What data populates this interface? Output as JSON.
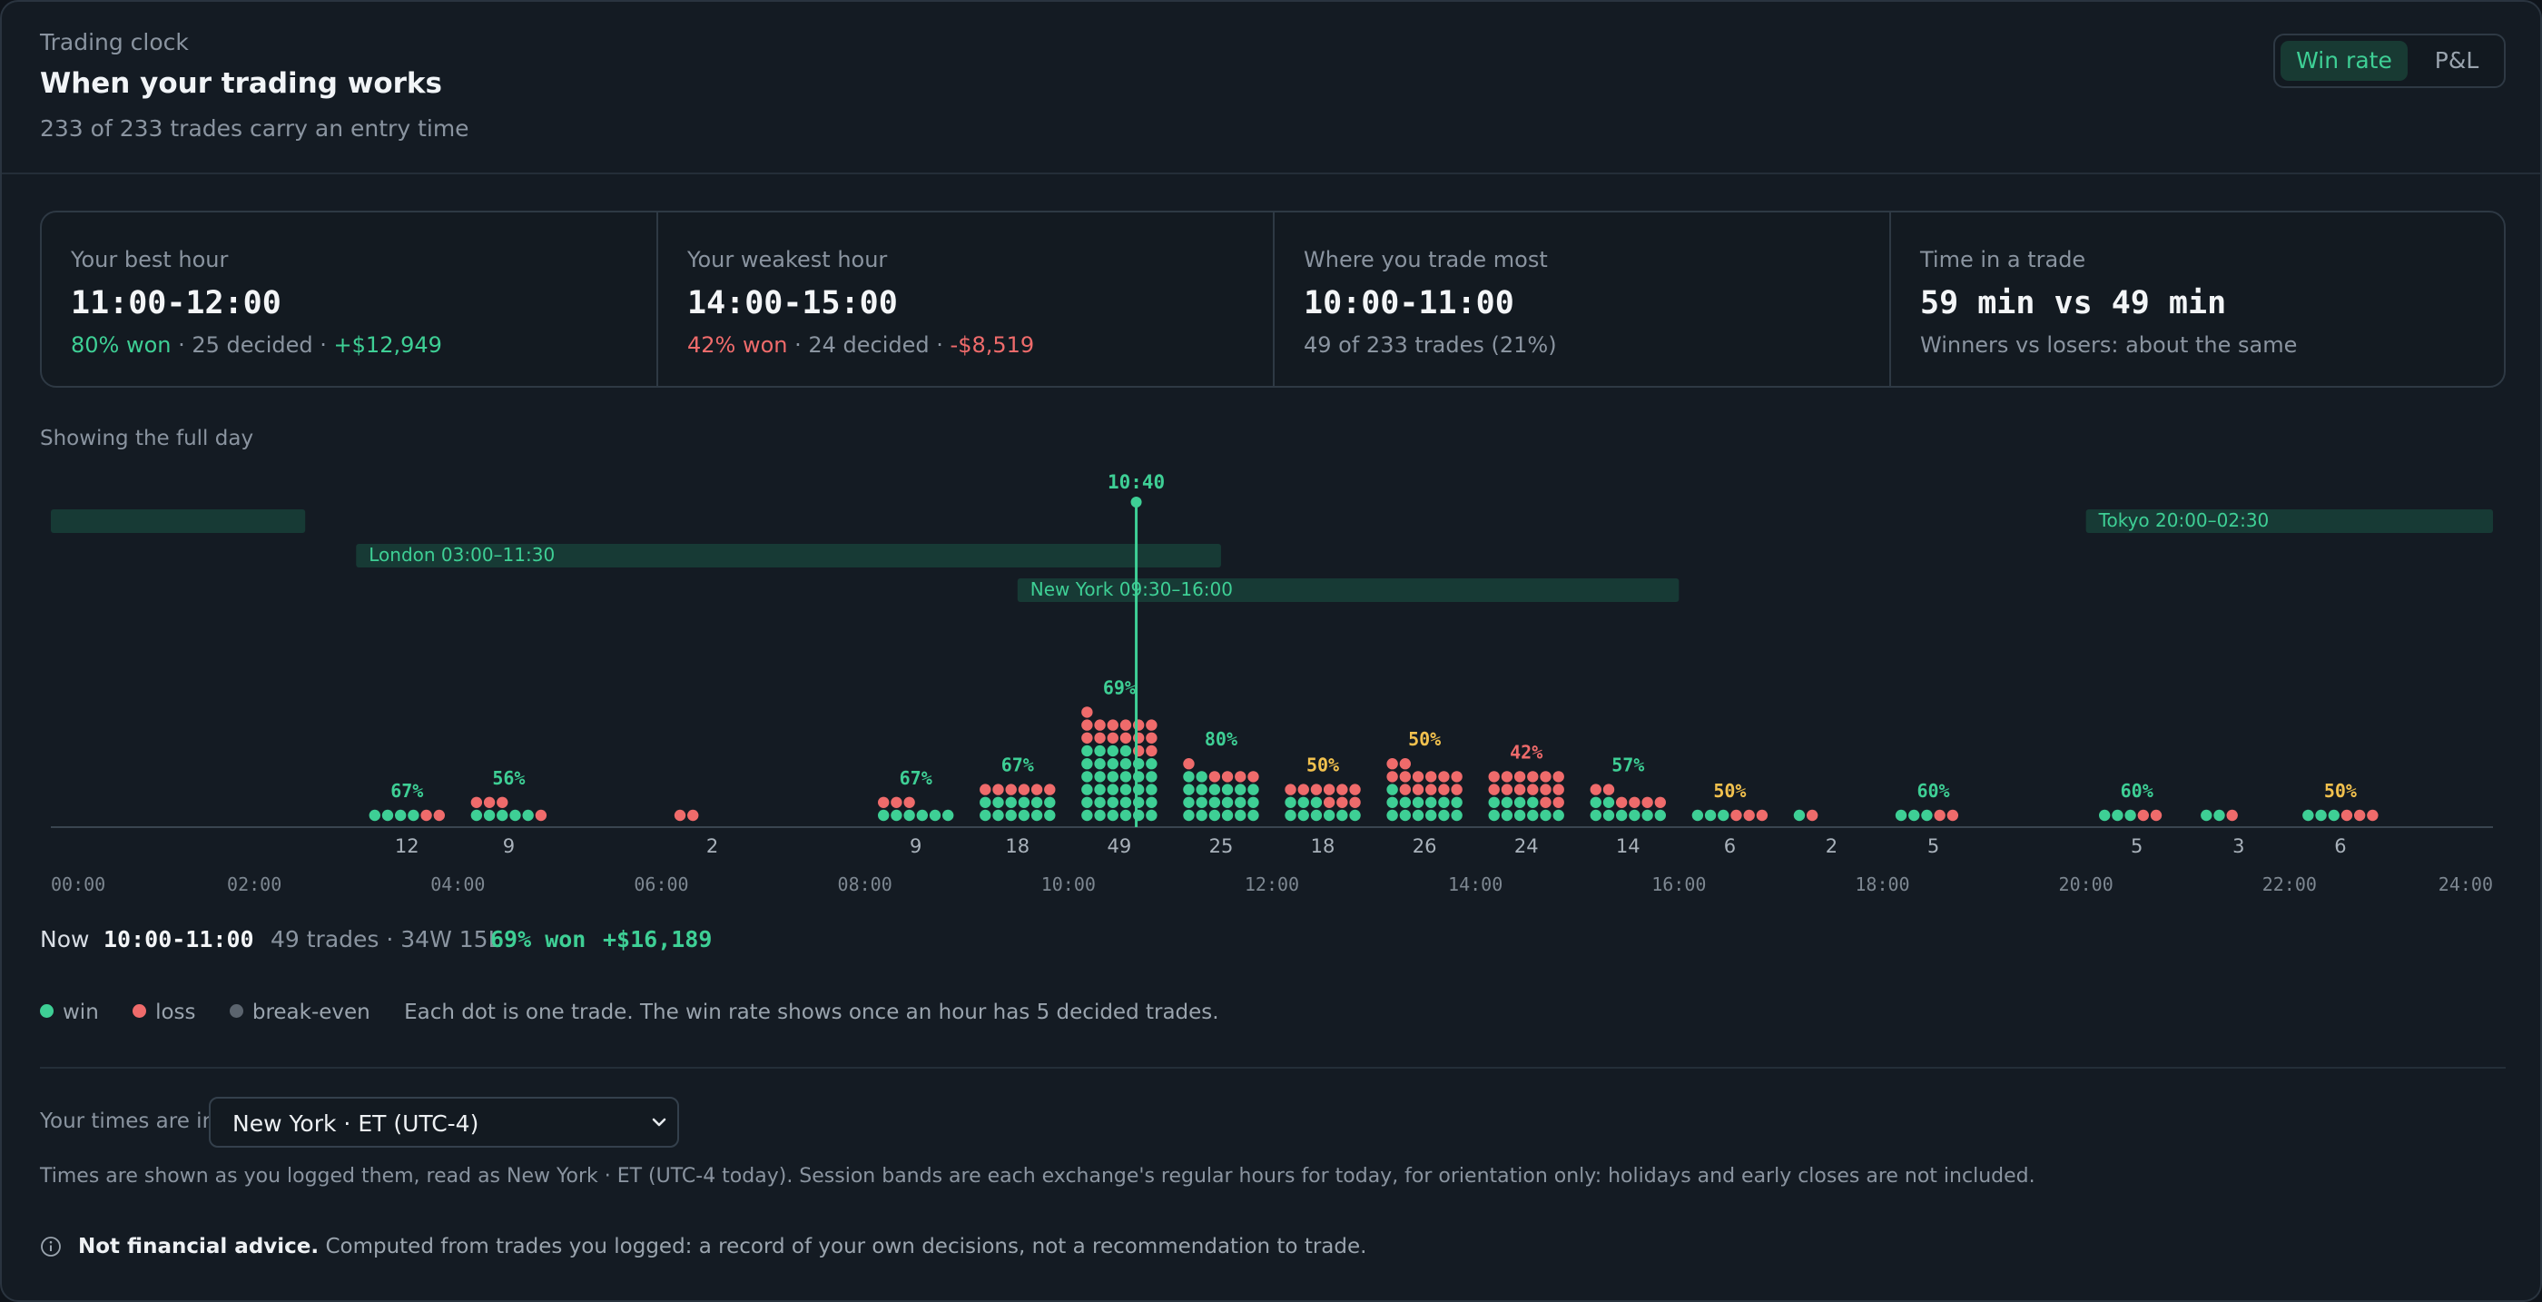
{
  "header": {
    "eyebrow": "Trading clock",
    "title": "When your trading works",
    "subtitle": "233 of 233 trades carry an entry time",
    "toggle": [
      {
        "label": "Win rate",
        "active": true
      },
      {
        "label": "P&L",
        "active": false
      }
    ]
  },
  "stats": [
    {
      "label": "Your best hour",
      "value": "11:00-12:00",
      "note_a": "80% won",
      "note_b": " · 25 decided · ",
      "note_c": "+$12,949",
      "tone": "g"
    },
    {
      "label": "Your weakest hour",
      "value": "14:00-15:00",
      "note_a": "42% won",
      "note_b": " · 24 decided · ",
      "note_c": "-$8,519",
      "tone": "r"
    },
    {
      "label": "Where you trade most",
      "value": "10:00-11:00",
      "note_a": "",
      "note_b": "49 of 233 trades (21%)",
      "note_c": "",
      "tone": ""
    },
    {
      "label": "Time in a trade",
      "value": "59 min vs 49 min",
      "note_a": "",
      "note_b": "Winners vs losers: about the same",
      "note_c": "",
      "tone": ""
    }
  ],
  "showing": "Showing the full day",
  "colors": {
    "win": "#3ecf95",
    "loss": "#ef6b6b",
    "even": "#5b646e",
    "warn": "#f2c14e",
    "band": "#173a35"
  },
  "chart_data": {
    "type": "dot-histogram",
    "x_axis_ticks": [
      "00:00",
      "02:00",
      "04:00",
      "06:00",
      "08:00",
      "10:00",
      "12:00",
      "14:00",
      "16:00",
      "18:00",
      "20:00",
      "22:00",
      "24:00"
    ],
    "xlim": [
      0,
      24
    ],
    "cursor": {
      "label": "10:40",
      "hour": 10.6667
    },
    "sessions": [
      {
        "label": "",
        "start": 0,
        "end": 2.5
      },
      {
        "label": "London 03:00–11:30",
        "start": 3,
        "end": 11.5
      },
      {
        "label": "New York 09:30–16:00",
        "start": 9.5,
        "end": 16
      },
      {
        "label": "Tokyo 20:00–02:30",
        "start": 20,
        "end": 24
      }
    ],
    "hours": [
      {
        "hour": 3,
        "wins": 4,
        "losses": 2,
        "count": "12",
        "rate": "67%"
      },
      {
        "hour": 4,
        "wins": 5,
        "losses": 4,
        "count": "9",
        "rate": "56%"
      },
      {
        "hour": 6,
        "wins": 0,
        "losses": 2,
        "count": "2",
        "rate": ""
      },
      {
        "hour": 8,
        "wins": 6,
        "losses": 3,
        "count": "9",
        "rate": "67%"
      },
      {
        "hour": 9,
        "wins": 12,
        "losses": 6,
        "count": "18",
        "rate": "67%"
      },
      {
        "hour": 10,
        "wins": 34,
        "losses": 15,
        "count": "49",
        "rate": "69%"
      },
      {
        "hour": 11,
        "wins": 20,
        "losses": 5,
        "count": "25",
        "rate": "80%"
      },
      {
        "hour": 12,
        "wins": 9,
        "losses": 9,
        "count": "18",
        "rate": "50%"
      },
      {
        "hour": 13,
        "wins": 13,
        "losses": 13,
        "count": "26",
        "rate": "50%"
      },
      {
        "hour": 14,
        "wins": 10,
        "losses": 14,
        "count": "24",
        "rate": "42%"
      },
      {
        "hour": 15,
        "wins": 8,
        "losses": 6,
        "count": "14",
        "rate": "57%"
      },
      {
        "hour": 16,
        "wins": 3,
        "losses": 3,
        "count": "6",
        "rate": "50%"
      },
      {
        "hour": 17,
        "wins": 1,
        "losses": 1,
        "count": "2",
        "rate": ""
      },
      {
        "hour": 18,
        "wins": 3,
        "losses": 2,
        "count": "5",
        "rate": "60%"
      },
      {
        "hour": 20,
        "wins": 3,
        "losses": 2,
        "count": "5",
        "rate": "60%"
      },
      {
        "hour": 21,
        "wins": 2,
        "losses": 1,
        "count": "3",
        "rate": ""
      },
      {
        "hour": 22,
        "wins": 3,
        "losses": 3,
        "count": "6",
        "rate": "50%"
      }
    ]
  },
  "now": {
    "label": "Now",
    "hour": "10:00-11:00",
    "detail": "49 trades · 34W 15L",
    "won": "69% won",
    "pnl": "+$16,189"
  },
  "legend": {
    "win": "win",
    "loss": "loss",
    "even": "break-even",
    "note": "Each dot is one trade. The win rate shows once an hour has 5 decided trades."
  },
  "timezone": {
    "label": "Your times are in",
    "value": "New York · ET (UTC-4)",
    "explanation": "Times are shown as you logged them, read as New York · ET (UTC-4 today). Session bands are each exchange's regular hours for today, for orientation only: holidays and early closes are not included."
  },
  "disclaimer": {
    "strong": "Not financial advice.",
    "text": " Computed from trades you logged: a record of your own decisions, not a recommendation to trade."
  }
}
